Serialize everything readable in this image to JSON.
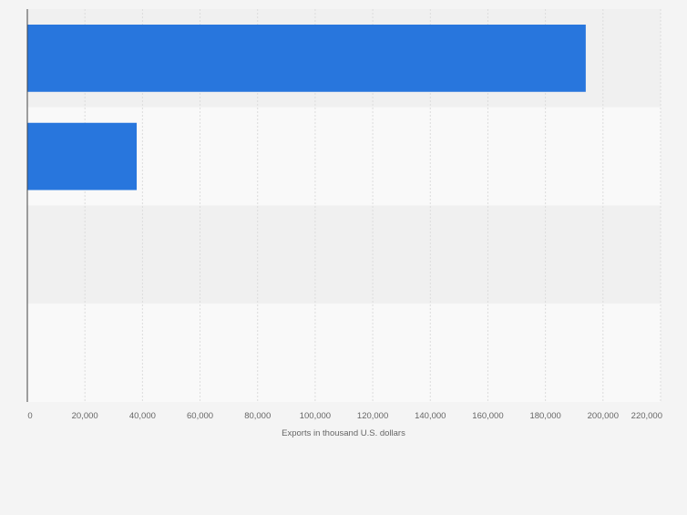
{
  "chart_data": {
    "type": "bar",
    "orientation": "horizontal",
    "categories": [
      "",
      "",
      "",
      ""
    ],
    "values": [
      194000,
      38000,
      0,
      0
    ],
    "xlabel": "Exports in thousand U.S. dollars",
    "ylabel": "",
    "xlim": [
      0,
      220000
    ],
    "xticks": [
      "0",
      "20,000",
      "40,000",
      "60,000",
      "80,000",
      "100,000",
      "120,000",
      "140,000",
      "160,000",
      "180,000",
      "200,000",
      "220,000"
    ],
    "grid": true,
    "legend": "none",
    "colors": {
      "bar": "#2876dd",
      "band_dark": "#f0f0f0",
      "band_light": "#f9f9f9",
      "grid": "#dcdcdc",
      "axis": "#444444",
      "text": "#666666"
    }
  }
}
